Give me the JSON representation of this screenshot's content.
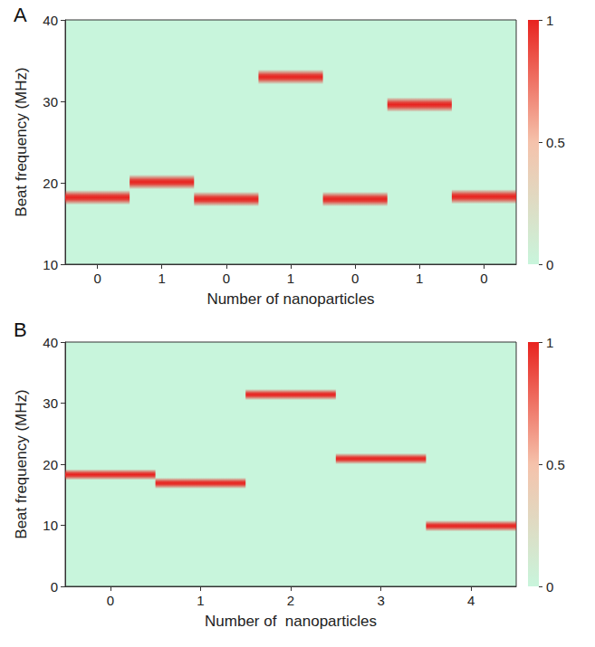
{
  "chart_data": [
    {
      "type": "heatmap",
      "title": "A",
      "x_label": "Number of nanoparticles",
      "y_label": "Beat frequency (MHz)",
      "categories": [
        "0",
        "1",
        "0",
        "1",
        "0",
        "1",
        "0"
      ],
      "values": [
        18.2,
        20.1,
        18.0,
        33.0,
        18.0,
        29.6,
        18.3
      ],
      "color": "#e8231f",
      "ylim": [
        10,
        40
      ],
      "yticks": [
        10,
        20,
        30,
        40
      ],
      "colorbar": {
        "range": [
          0,
          1
        ],
        "ticks": [
          0,
          0.5,
          1
        ]
      }
    },
    {
      "type": "heatmap",
      "title": "B",
      "x_label": "Number of  nanoparticles",
      "y_label": "Beat frequency (MHz)",
      "categories": [
        "0",
        "1",
        "2",
        "3",
        "4"
      ],
      "values": [
        18.3,
        16.9,
        31.4,
        20.9,
        9.9
      ],
      "color": "#e8231f",
      "ylim": [
        0,
        40
      ],
      "yticks": [
        0,
        10,
        20,
        30,
        40
      ],
      "colorbar": {
        "range": [
          0,
          1
        ],
        "ticks": [
          0,
          0.5,
          1
        ]
      }
    }
  ]
}
